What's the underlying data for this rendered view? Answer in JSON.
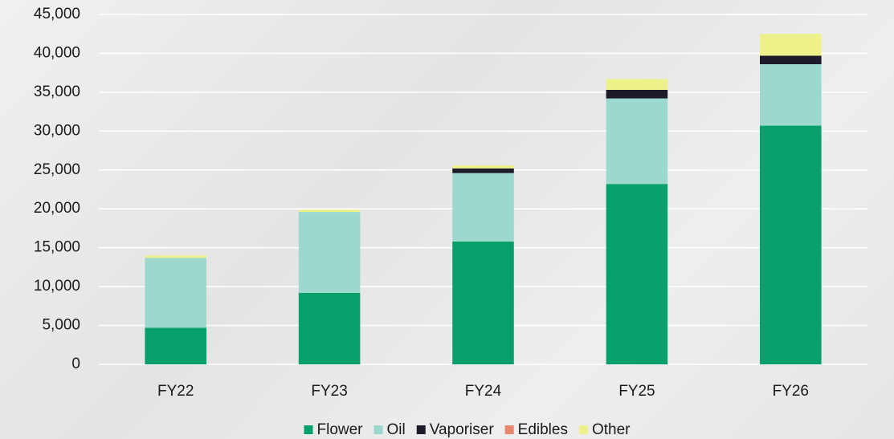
{
  "chart_data": {
    "type": "stacked_bar",
    "categories": [
      "FY22",
      "FY23",
      "FY24",
      "FY25",
      "FY26"
    ],
    "series": [
      {
        "name": "Flower",
        "color": "#07a06a",
        "values": [
          4700,
          9200,
          15800,
          23200,
          30700
        ]
      },
      {
        "name": "Oil",
        "color": "#9dd8cf",
        "values": [
          9000,
          10400,
          8800,
          11000,
          7900
        ]
      },
      {
        "name": "Vaporiser",
        "color": "#1d1a2a",
        "values": [
          0,
          0,
          600,
          1100,
          1100
        ]
      },
      {
        "name": "Edibles",
        "color": "#e8866e",
        "values": [
          0,
          0,
          0,
          0,
          0
        ]
      },
      {
        "name": "Other",
        "color": "#eef08a",
        "values": [
          300,
          300,
          400,
          1400,
          2800
        ]
      }
    ],
    "ylim": [
      0,
      45000
    ],
    "yticks": [
      0,
      {
        "value": 5000,
        "label": "5,000"
      },
      {
        "value": 10000,
        "label": "10,000"
      },
      {
        "value": 15000,
        "label": "15,000"
      },
      {
        "value": 20000,
        "label": "20,000"
      },
      {
        "value": 25000,
        "label": "25,000"
      },
      {
        "value": 30000,
        "label": "30,000"
      },
      {
        "value": 35000,
        "label": "35,000"
      },
      {
        "value": 40000,
        "label": "40,000"
      },
      {
        "value": 45000,
        "label": "45,000"
      }
    ],
    "grid": true,
    "legend": "bottom"
  }
}
